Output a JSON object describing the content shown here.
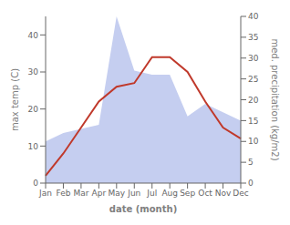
{
  "chart_data": {
    "type": "line",
    "categories": [
      "Jan",
      "Feb",
      "Mar",
      "Apr",
      "May",
      "Jun",
      "Jul",
      "Aug",
      "Sep",
      "Oct",
      "Nov",
      "Dec"
    ],
    "xlabel": "date (month)",
    "ylabel": "max temp (C)",
    "y2label": "med. precipitation (kg/m2)",
    "ylim": [
      0,
      45
    ],
    "yticks": [
      0,
      10,
      20,
      30,
      40
    ],
    "y2lim": [
      0,
      40
    ],
    "y2ticks": [
      0,
      5,
      10,
      15,
      20,
      25,
      30,
      35,
      40
    ],
    "grid": false,
    "series": [
      {
        "type": "area",
        "axis": "y2",
        "color": "#c5cef0",
        "values": [
          10,
          12,
          13,
          14,
          40,
          27,
          26,
          26,
          16,
          19,
          17,
          15
        ]
      },
      {
        "type": "line",
        "color": "#c0392b",
        "values": [
          2,
          8,
          15,
          22,
          26,
          27,
          34,
          34,
          30,
          22,
          15,
          12
        ]
      }
    ]
  }
}
